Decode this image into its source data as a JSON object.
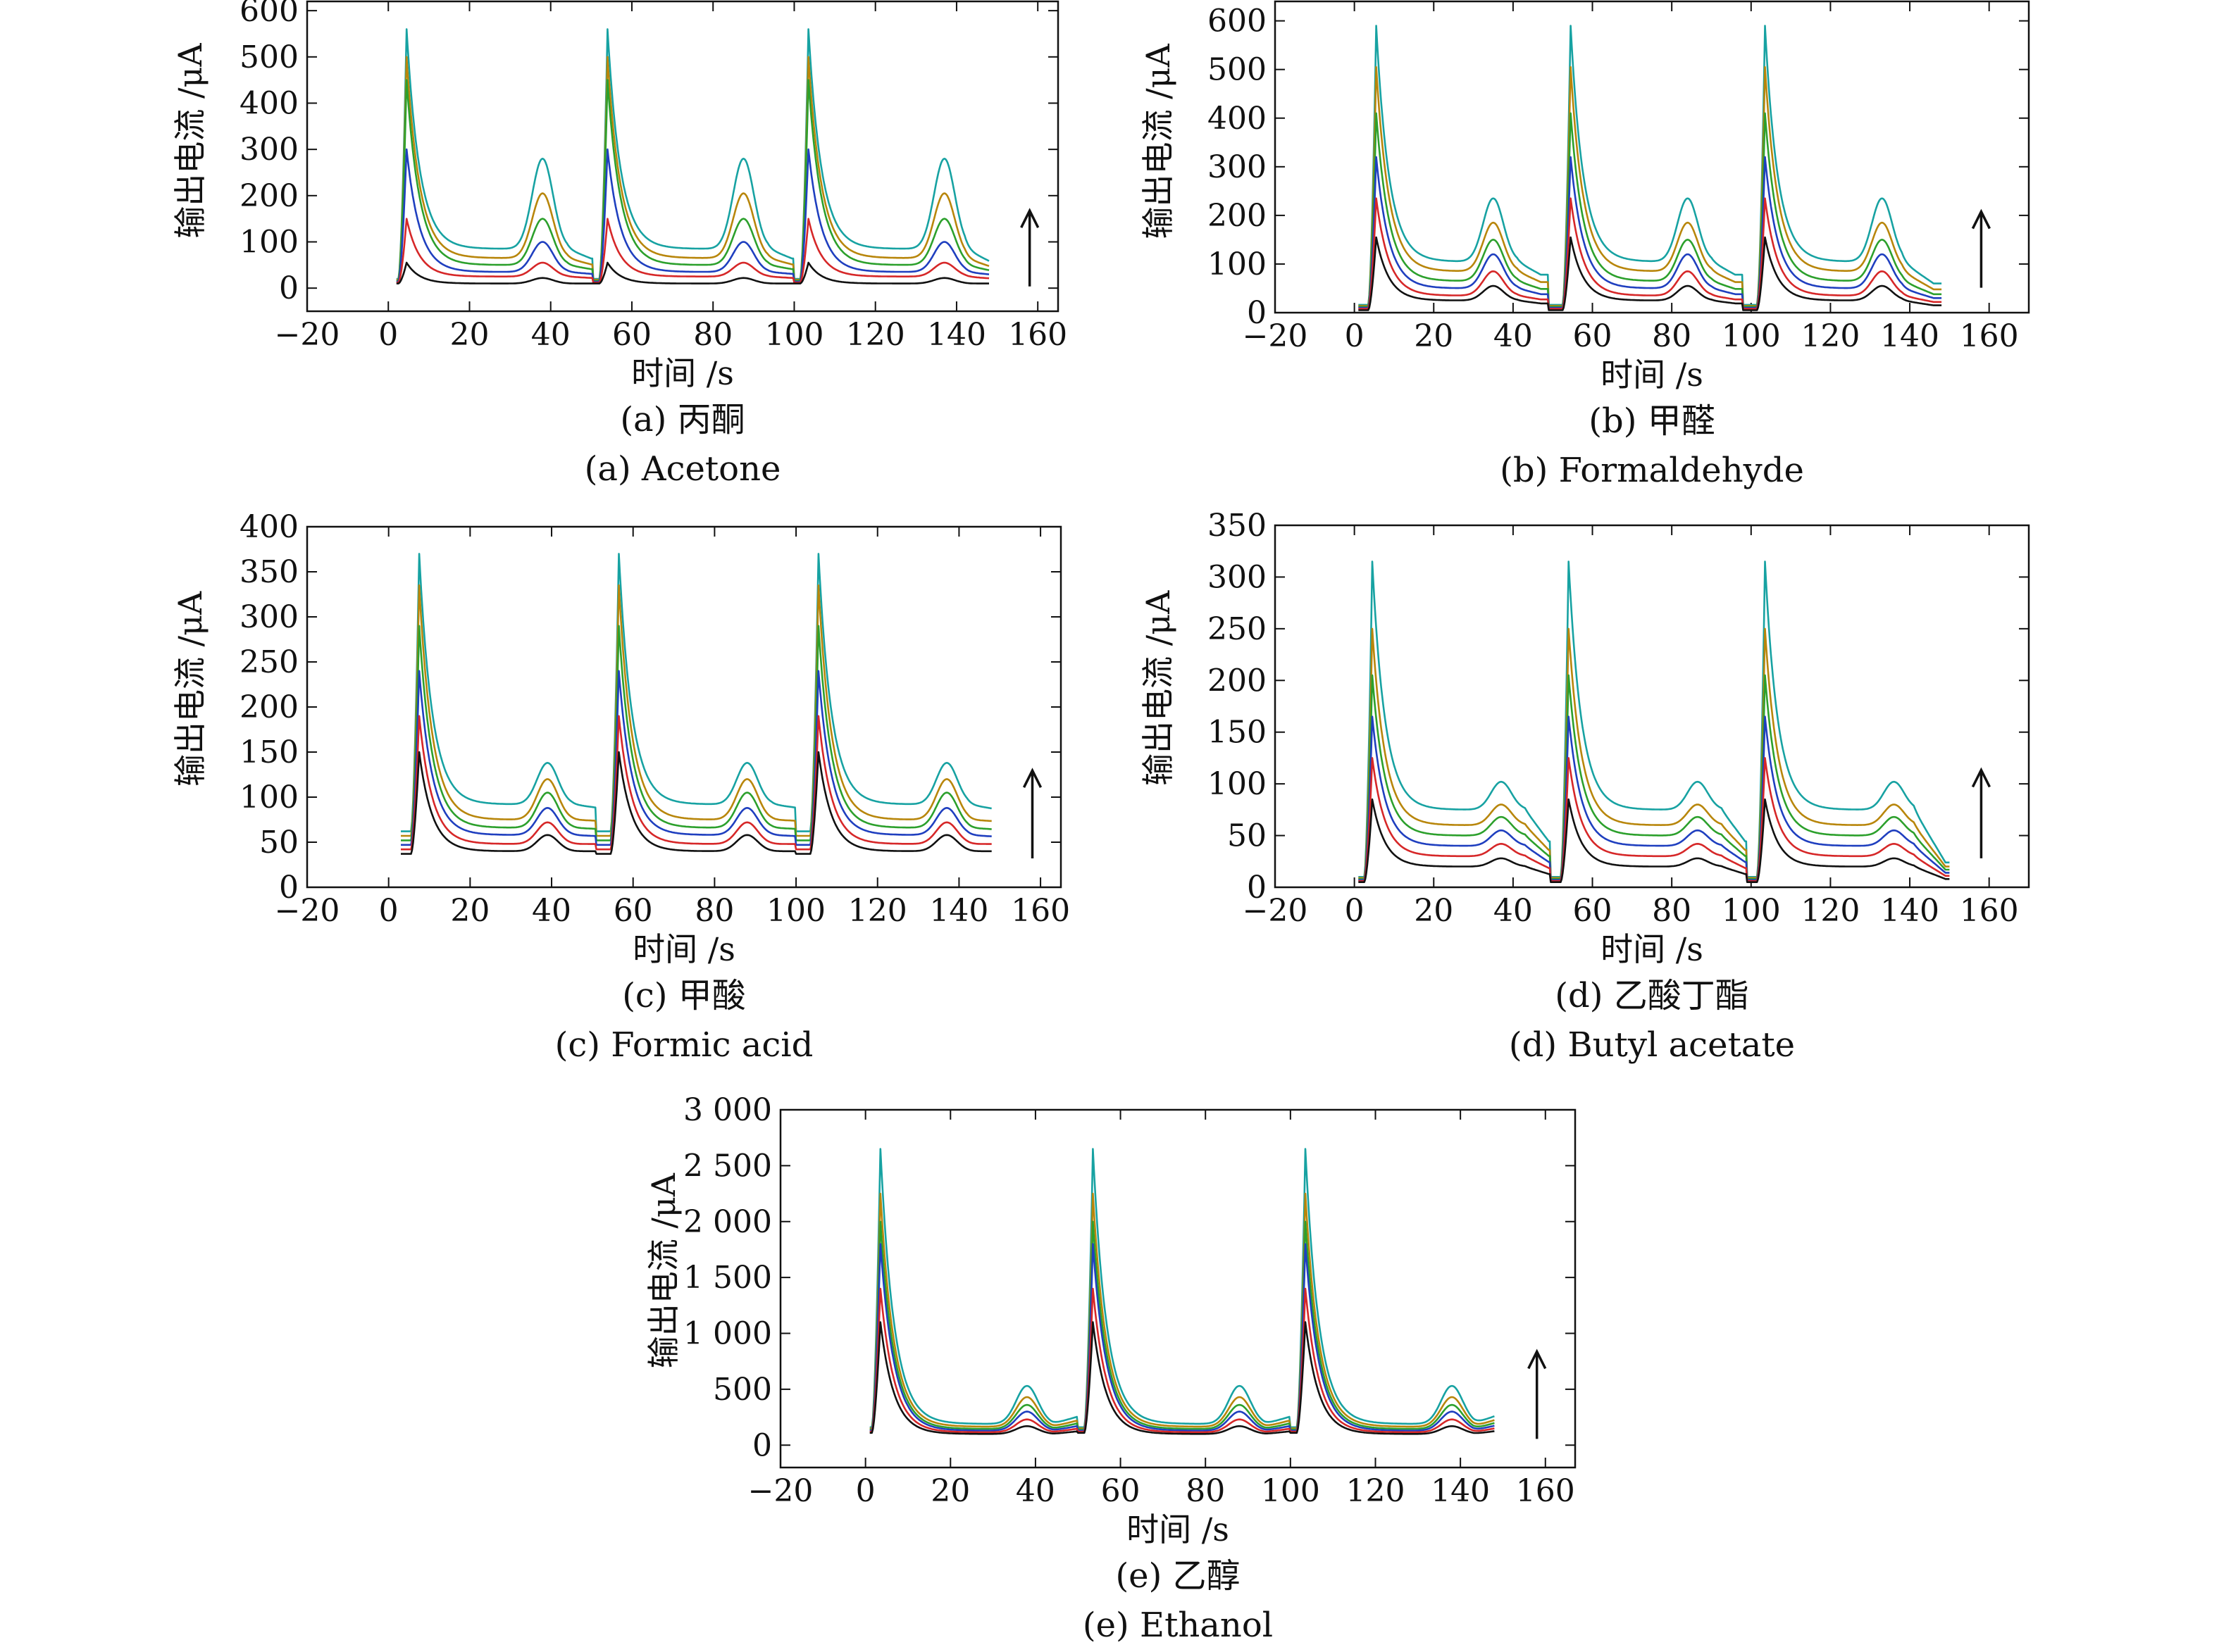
{
  "chart_data": [
    {
      "id": "a",
      "type": "line",
      "caption_cn": "(a) 丙酮",
      "caption_en": "(a) Acetone",
      "xlabel": "时间 /s",
      "ylabel": "输出电流 /μA",
      "xlim": [
        -20,
        165
      ],
      "ylim": [
        -50,
        620
      ],
      "xticks": [
        -20,
        0,
        20,
        40,
        60,
        80,
        100,
        120,
        140,
        160
      ],
      "xtick_labels": [
        "−20",
        "0",
        "20",
        "40",
        "60",
        "80",
        "100",
        "120",
        "140",
        "160"
      ],
      "yticks": [
        0,
        100,
        200,
        300,
        400,
        500,
        600
      ],
      "ytick_labels": [
        "0",
        "100",
        "200",
        "300",
        "400",
        "500",
        "600"
      ],
      "arrow": "up",
      "period": 49.5,
      "cycles": 3,
      "x_start": 2,
      "x_end": 148,
      "main_peak_x": 4.5,
      "second_peak_x": 38,
      "series": [
        {
          "color": "#111111",
          "baseline": 10,
          "plateau": 10,
          "main_peak": 55,
          "second_peak": 22,
          "end": 10
        },
        {
          "color": "#d62728",
          "baseline": 12,
          "plateau": 25,
          "main_peak": 150,
          "second_peak": 55,
          "end": 20
        },
        {
          "color": "#1f3fbf",
          "baseline": 14,
          "plateau": 35,
          "main_peak": 300,
          "second_peak": 100,
          "end": 28
        },
        {
          "color": "#2ca02c",
          "baseline": 16,
          "plateau": 50,
          "main_peak": 450,
          "second_peak": 150,
          "end": 35
        },
        {
          "color": "#b8860b",
          "baseline": 18,
          "plateau": 65,
          "main_peak": 500,
          "second_peak": 205,
          "end": 42
        },
        {
          "color": "#17a2a2",
          "baseline": 20,
          "plateau": 85,
          "main_peak": 560,
          "second_peak": 280,
          "end": 50
        }
      ]
    },
    {
      "id": "b",
      "type": "line",
      "caption_cn": "(b) 甲醛",
      "caption_en": "(b) Formaldehyde",
      "xlabel": "时间 /s",
      "ylabel": "输出电流 /μA",
      "xlim": [
        -20,
        170
      ],
      "ylim": [
        0,
        640
      ],
      "xticks": [
        -20,
        0,
        20,
        40,
        60,
        80,
        100,
        120,
        140,
        160
      ],
      "xtick_labels": [
        "−20",
        "0",
        "20",
        "40",
        "60",
        "80",
        "100",
        "120",
        "140",
        "160"
      ],
      "yticks": [
        0,
        100,
        200,
        300,
        400,
        500,
        600
      ],
      "ytick_labels": [
        "0",
        "100",
        "200",
        "300",
        "400",
        "500",
        "600"
      ],
      "arrow": "up",
      "period": 49,
      "cycles": 3,
      "x_start": 1,
      "x_end": 148,
      "main_peak_x": 5.5,
      "second_peak_x": 35,
      "series": [
        {
          "color": "#111111",
          "baseline": 5,
          "plateau": 25,
          "main_peak": 155,
          "second_peak": 55,
          "end": 15
        },
        {
          "color": "#d62728",
          "baseline": 8,
          "plateau": 35,
          "main_peak": 235,
          "second_peak": 85,
          "end": 22
        },
        {
          "color": "#1f3fbf",
          "baseline": 10,
          "plateau": 50,
          "main_peak": 320,
          "second_peak": 120,
          "end": 30
        },
        {
          "color": "#2ca02c",
          "baseline": 12,
          "plateau": 65,
          "main_peak": 410,
          "second_peak": 150,
          "end": 38
        },
        {
          "color": "#b8860b",
          "baseline": 14,
          "plateau": 85,
          "main_peak": 505,
          "second_peak": 185,
          "end": 48
        },
        {
          "color": "#17a2a2",
          "baseline": 16,
          "plateau": 105,
          "main_peak": 590,
          "second_peak": 235,
          "end": 60
        }
      ]
    },
    {
      "id": "c",
      "type": "line",
      "caption_cn": "(c) 甲酸",
      "caption_en": "(c) Formic acid",
      "xlabel": "时间 /s",
      "ylabel": "输出电流 /μA",
      "xlim": [
        -20,
        165
      ],
      "ylim": [
        0,
        400
      ],
      "xticks": [
        -20,
        0,
        20,
        40,
        60,
        80,
        100,
        120,
        140,
        160
      ],
      "xtick_labels": [
        "−20",
        "0",
        "20",
        "40",
        "60",
        "80",
        "100",
        "120",
        "140",
        "160"
      ],
      "yticks": [
        0,
        50,
        100,
        150,
        200,
        250,
        300,
        350,
        400
      ],
      "ytick_labels": [
        "0",
        "50",
        "100",
        "150",
        "200",
        "250",
        "300",
        "350",
        "400"
      ],
      "arrow": "up",
      "period": 49,
      "cycles": 3,
      "x_start": 3,
      "x_end": 148,
      "main_peak_x": 7.5,
      "second_peak_x": 39,
      "series": [
        {
          "color": "#111111",
          "baseline": 37,
          "plateau": 40,
          "main_peak": 150,
          "second_peak": 58,
          "end": 40
        },
        {
          "color": "#d62728",
          "baseline": 42,
          "plateau": 48,
          "main_peak": 190,
          "second_peak": 72,
          "end": 48
        },
        {
          "color": "#1f3fbf",
          "baseline": 47,
          "plateau": 58,
          "main_peak": 240,
          "second_peak": 88,
          "end": 56
        },
        {
          "color": "#2ca02c",
          "baseline": 52,
          "plateau": 66,
          "main_peak": 290,
          "second_peak": 105,
          "end": 64
        },
        {
          "color": "#b8860b",
          "baseline": 57,
          "plateau": 75,
          "main_peak": 335,
          "second_peak": 120,
          "end": 73
        },
        {
          "color": "#17a2a2",
          "baseline": 62,
          "plateau": 92,
          "main_peak": 370,
          "second_peak": 138,
          "end": 86
        }
      ]
    },
    {
      "id": "d",
      "type": "line",
      "caption_cn": "(d) 乙酸丁酯",
      "caption_en": "(d) Butyl acetate",
      "xlabel": "时间 /s",
      "ylabel": "输出电流 /μA",
      "xlim": [
        -20,
        170
      ],
      "ylim": [
        0,
        350
      ],
      "xticks": [
        -20,
        0,
        20,
        40,
        60,
        80,
        100,
        120,
        140,
        160
      ],
      "xtick_labels": [
        "−20",
        "0",
        "20",
        "40",
        "60",
        "80",
        "100",
        "120",
        "140",
        "160"
      ],
      "yticks": [
        0,
        50,
        100,
        150,
        200,
        250,
        300,
        350
      ],
      "ytick_labels": [
        "0",
        "50",
        "100",
        "150",
        "200",
        "250",
        "300",
        "350"
      ],
      "arrow": "up",
      "period": 49.5,
      "cycles": 3,
      "x_start": 1,
      "x_end": 150,
      "main_peak_x": 4.5,
      "second_peak_x": 37,
      "series": [
        {
          "color": "#111111",
          "baseline": 5,
          "plateau": 20,
          "main_peak": 85,
          "second_peak": 28,
          "end": 8
        },
        {
          "color": "#d62728",
          "baseline": 6,
          "plateau": 30,
          "main_peak": 125,
          "second_peak": 42,
          "end": 11
        },
        {
          "color": "#1f3fbf",
          "baseline": 7,
          "plateau": 40,
          "main_peak": 165,
          "second_peak": 55,
          "end": 14
        },
        {
          "color": "#2ca02c",
          "baseline": 8,
          "plateau": 50,
          "main_peak": 205,
          "second_peak": 68,
          "end": 17
        },
        {
          "color": "#b8860b",
          "baseline": 9,
          "plateau": 60,
          "main_peak": 250,
          "second_peak": 80,
          "end": 20
        },
        {
          "color": "#17a2a2",
          "baseline": 10,
          "plateau": 75,
          "main_peak": 315,
          "second_peak": 102,
          "end": 24
        }
      ]
    },
    {
      "id": "e",
      "type": "line",
      "caption_cn": "(e) 乙醇",
      "caption_en": "(e) Ethanol",
      "xlabel": "时间 /s",
      "ylabel": "输出电流 /μA",
      "xlim": [
        -20,
        167
      ],
      "ylim": [
        -200,
        3000
      ],
      "xticks": [
        -20,
        0,
        20,
        40,
        60,
        80,
        100,
        120,
        140,
        160
      ],
      "xtick_labels": [
        "−20",
        "0",
        "20",
        "40",
        "60",
        "80",
        "100",
        "120",
        "140",
        "160"
      ],
      "yticks": [
        0,
        500,
        1000,
        1500,
        2000,
        2500,
        3000
      ],
      "ytick_labels": [
        "0",
        "500",
        "1 000",
        "1 500",
        "2 000",
        "2 500",
        "3 000"
      ],
      "arrow": "up",
      "period": 50,
      "cycles": 3,
      "x_start": 1,
      "x_end": 148,
      "main_peak_x": 3.5,
      "second_peak_x": 38,
      "series": [
        {
          "color": "#111111",
          "baseline": 110,
          "plateau": 100,
          "main_peak": 1100,
          "second_peak": 170,
          "end": 140
        },
        {
          "color": "#d62728",
          "baseline": 120,
          "plateau": 115,
          "main_peak": 1400,
          "second_peak": 230,
          "end": 170
        },
        {
          "color": "#1f3fbf",
          "baseline": 130,
          "plateau": 130,
          "main_peak": 1800,
          "second_peak": 300,
          "end": 200
        },
        {
          "color": "#2ca02c",
          "baseline": 140,
          "plateau": 145,
          "main_peak": 2000,
          "second_peak": 360,
          "end": 230
        },
        {
          "color": "#b8860b",
          "baseline": 150,
          "plateau": 165,
          "main_peak": 2250,
          "second_peak": 430,
          "end": 260
        },
        {
          "color": "#17a2a2",
          "baseline": 160,
          "plateau": 190,
          "main_peak": 2650,
          "second_peak": 530,
          "end": 300
        }
      ]
    }
  ]
}
